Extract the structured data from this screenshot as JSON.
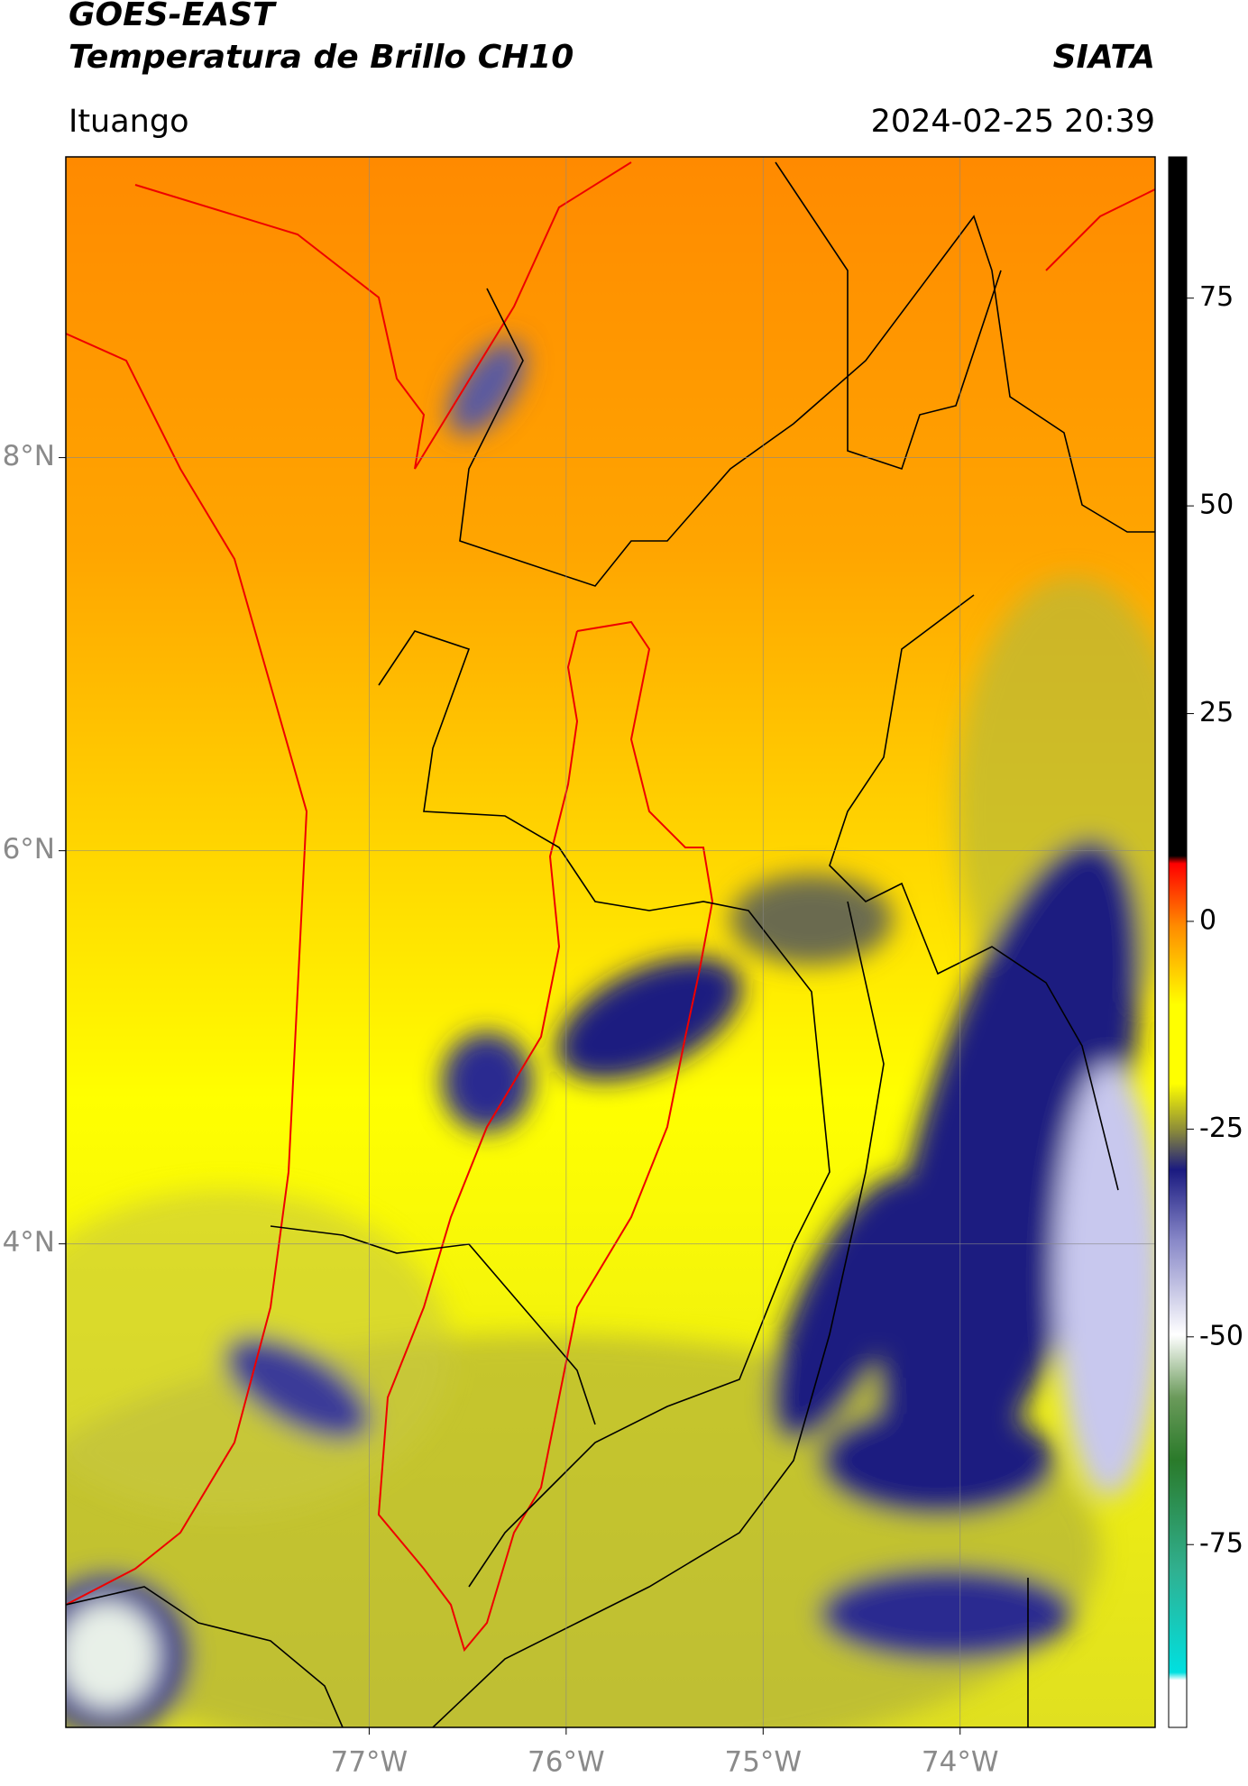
{
  "header": {
    "title": "GOES-EAST",
    "subtitle": "Temperatura de Brillo CH10",
    "source": "SIATA",
    "location": "Ituango",
    "timestamp": "2024-02-25 20:39"
  },
  "map": {
    "xlim": [
      -78.54,
      -73.01
    ],
    "ylim": [
      1.54,
      9.53
    ],
    "xticks": [
      {
        "value": -77,
        "label": "77°W"
      },
      {
        "value": -76,
        "label": "76°W"
      },
      {
        "value": -75,
        "label": "75°W"
      },
      {
        "value": -74,
        "label": "74°W"
      }
    ],
    "yticks": [
      {
        "value": 8,
        "label": "8°N"
      },
      {
        "value": 6,
        "label": "6°N"
      },
      {
        "value": 4,
        "label": "4°N"
      }
    ],
    "grid": true
  },
  "colorbar": {
    "lim": [
      -97,
      92
    ],
    "ticks": [
      75,
      50,
      25,
      0,
      -25,
      -50,
      -75
    ]
  }
}
